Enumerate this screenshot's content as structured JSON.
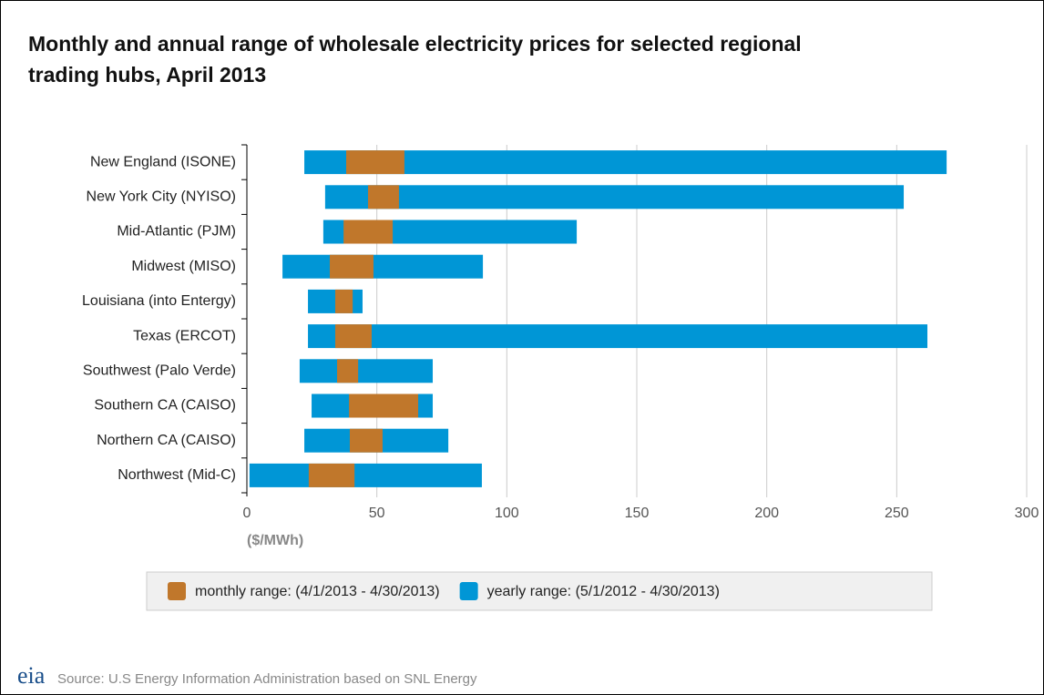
{
  "chart_data": {
    "type": "floating_bar",
    "title": "Monthly and annual range of wholesale electricity prices for selected regional trading hubs, April 2013",
    "categories": [
      "New England (ISONE)",
      "New York City (NYISO)",
      "Mid-Atlantic (PJM)",
      "Midwest (MISO)",
      "Louisiana (into Entergy)",
      "Texas (ERCOT)",
      "Southwest (Palo Verde)",
      "Southern CA (CAISO)",
      "Northern CA (CAISO)",
      "Northwest (Mid-C)"
    ],
    "series": [
      {
        "name": "yearly range: (5/1/2012 - 4/30/2013)",
        "color": "#0096d6",
        "values": [
          [
            22.1,
            269.2
          ],
          [
            30.1,
            252.7
          ],
          [
            29.4,
            126.9
          ],
          [
            13.7,
            90.8
          ],
          [
            23.5,
            44.5
          ],
          [
            23.5,
            261.8
          ],
          [
            20.3,
            71.5
          ],
          [
            24.9,
            71.5
          ],
          [
            22.1,
            77.5
          ],
          [
            1,
            90.4
          ]
        ]
      },
      {
        "name": "monthly range: (4/1/2013 - 4/30/2013)",
        "color": "#c0772b",
        "values": [
          [
            38.2,
            60.6
          ],
          [
            46.6,
            58.5
          ],
          [
            37.2,
            56.1
          ],
          [
            31.9,
            48.7
          ],
          [
            34,
            40.7
          ],
          [
            34,
            48
          ],
          [
            34.7,
            42.8
          ],
          [
            39.3,
            65.9
          ],
          [
            39.6,
            52.2
          ],
          [
            23.8,
            41.4
          ]
        ]
      }
    ],
    "legend_order": [
      1,
      0
    ],
    "xlabel": "($/MWh)",
    "xlim": [
      0,
      300
    ],
    "xticks": [
      0,
      50,
      100,
      150,
      200,
      250,
      300
    ],
    "grid": true
  },
  "footer": {
    "logo": "eia",
    "source": "Source: U.S Energy Information Administration based on SNL Energy"
  }
}
